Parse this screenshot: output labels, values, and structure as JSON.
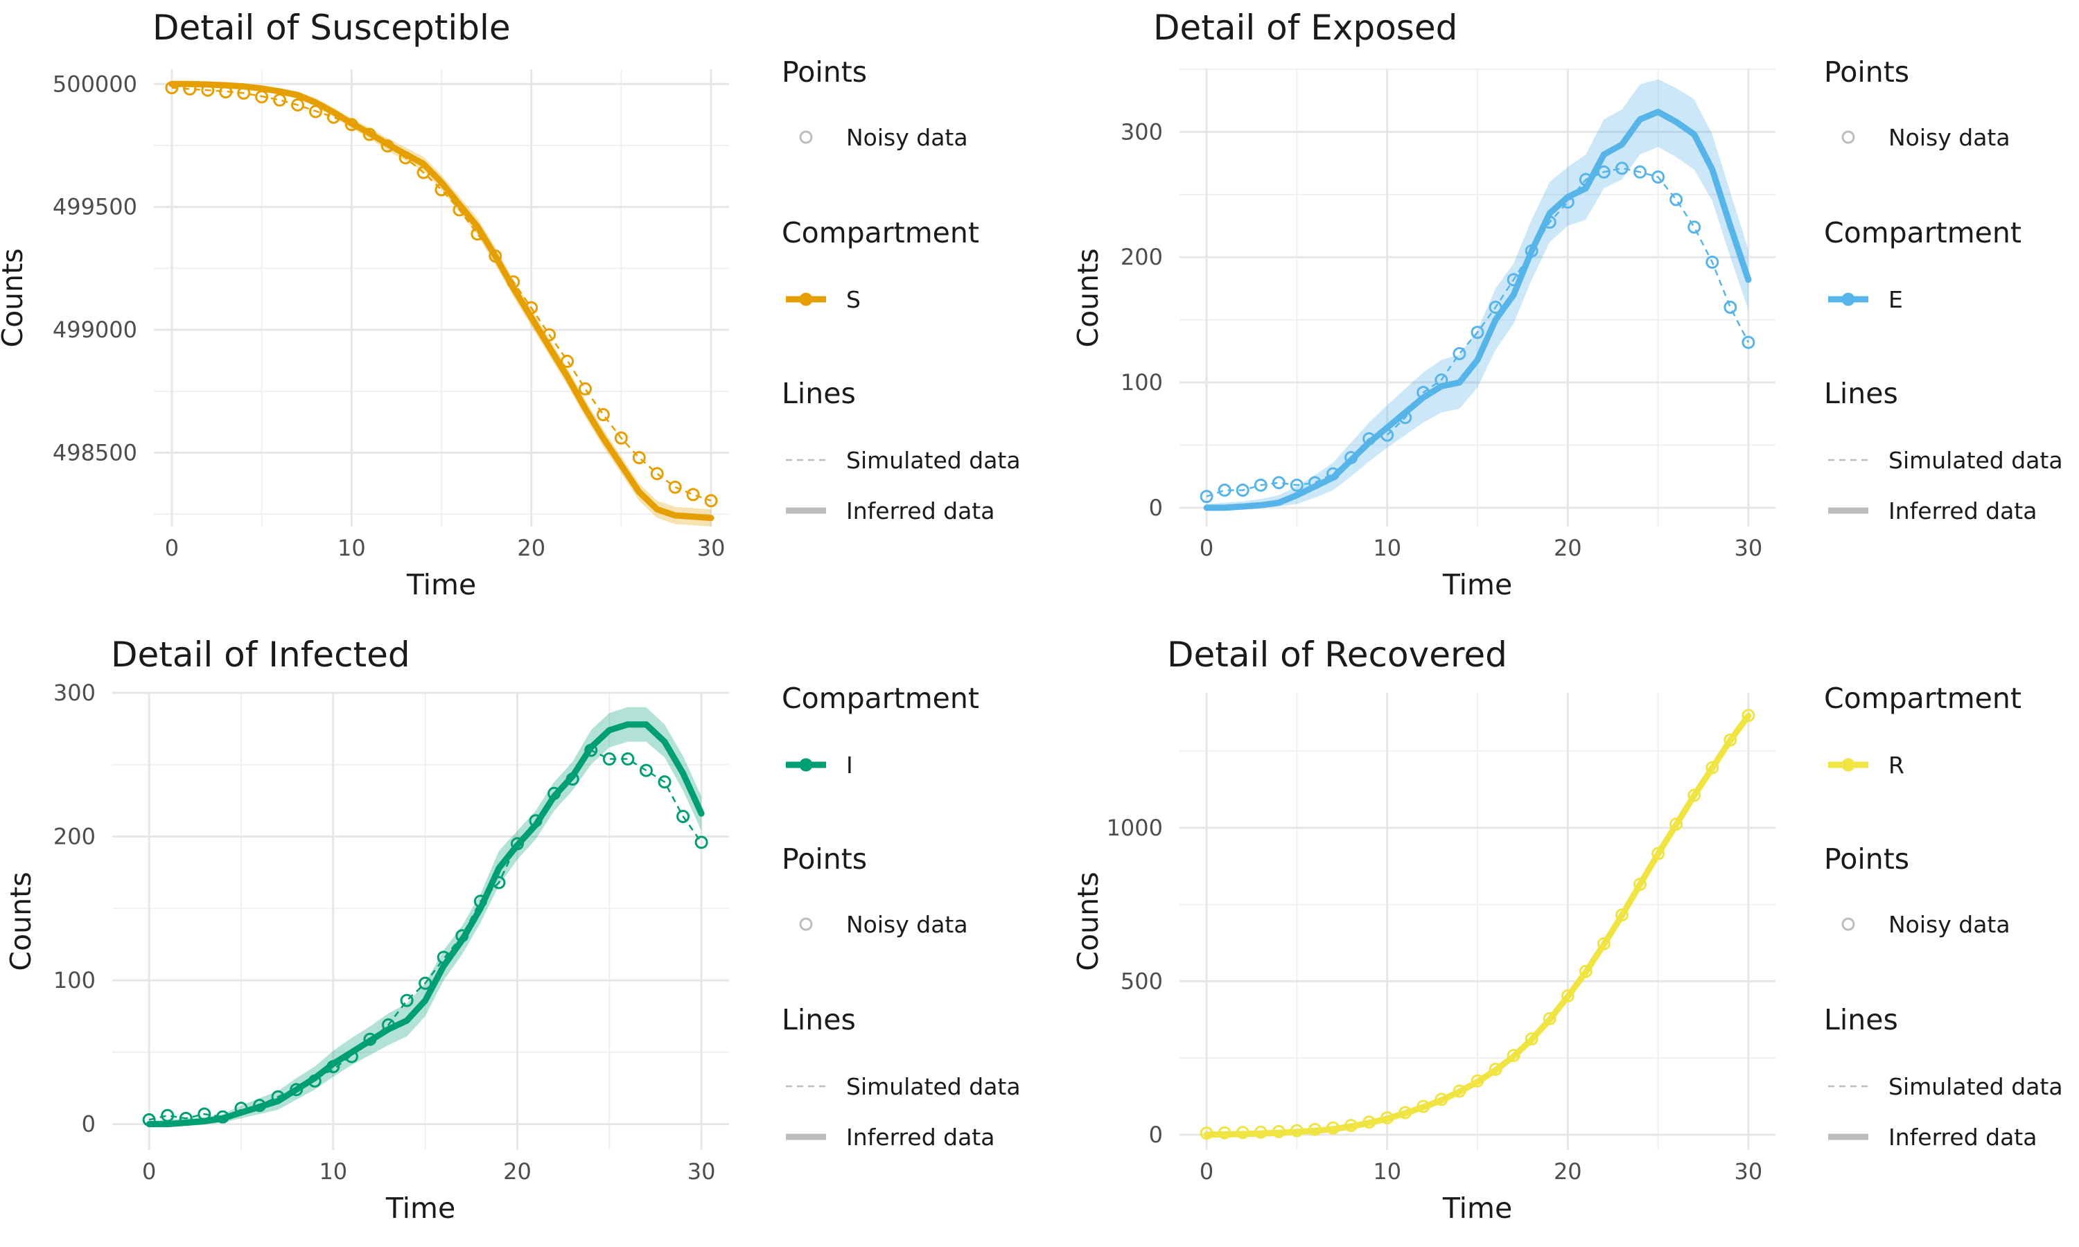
{
  "legend_text": {
    "points_title": "Points",
    "noisy_label": "Noisy data",
    "compartment_title": "Compartment",
    "lines_title": "Lines",
    "simulated_label": "Simulated data",
    "inferred_label": "Inferred data",
    "noisy_color": "#bdbdbd",
    "line_color": "#bdbdbd"
  },
  "chart_data": [
    {
      "type": "line",
      "title": "Detail of Susceptible",
      "xlabel": "Time",
      "ylabel": "Counts",
      "xlim": [
        -1,
        31
      ],
      "ylim": [
        498200,
        500060
      ],
      "xticks": [
        0,
        10,
        20,
        30
      ],
      "yticks": [
        498500,
        499000,
        499500,
        500000
      ],
      "grid": true,
      "color": "#E69F00",
      "compartment": "S",
      "legend_order": [
        "points",
        "compartment",
        "lines"
      ],
      "x": [
        0,
        1,
        2,
        3,
        4,
        5,
        6,
        7,
        8,
        9,
        10,
        11,
        12,
        13,
        14,
        15,
        16,
        17,
        18,
        19,
        20,
        21,
        22,
        23,
        24,
        25,
        26,
        27,
        28,
        29,
        30
      ],
      "series": [
        {
          "name": "Inferred data",
          "values": [
            500000,
            500000,
            499998,
            499995,
            499990,
            499982,
            499970,
            499955,
            499925,
            499885,
            499840,
            499800,
            499755,
            499715,
            499675,
            499600,
            499510,
            499420,
            499300,
            499170,
            499050,
            498930,
            498810,
            498680,
            498560,
            498450,
            498340,
            498270,
            498245,
            498240,
            498235
          ]
        },
        {
          "name": "Simulated data",
          "values": [
            499985,
            499980,
            499975,
            499970,
            499963,
            499950,
            499935,
            499915,
            499890,
            499865,
            499835,
            499795,
            499750,
            499700,
            499640,
            499570,
            499490,
            499390,
            499300,
            499195,
            499090,
            498980,
            498875,
            498760,
            498655,
            498560,
            498480,
            498415,
            498360,
            498330,
            498305
          ]
        },
        {
          "name": "Noisy data",
          "values": [
            499985,
            499980,
            499975,
            499968,
            499963,
            499948,
            499935,
            499915,
            499888,
            499865,
            499835,
            499795,
            499748,
            499700,
            499640,
            499570,
            499488,
            499390,
            499300,
            499195,
            499090,
            498980,
            498872,
            498760,
            498655,
            498560,
            498480,
            498415,
            498360,
            498330,
            498305
          ]
        }
      ],
      "band_lower": [
        499998,
        499996,
        499993,
        499988,
        499982,
        499972,
        499958,
        499940,
        499908,
        499866,
        499820,
        499778,
        499730,
        499688,
        499646,
        499570,
        499478,
        499385,
        499265,
        499135,
        499015,
        498895,
        498775,
        498645,
        498525,
        498415,
        498305,
        498235,
        498210,
        498205,
        498200
      ],
      "band_upper": [
        500002,
        500004,
        500003,
        500002,
        499998,
        499992,
        499982,
        499970,
        499942,
        499904,
        499860,
        499822,
        499780,
        499742,
        499704,
        499630,
        499542,
        499455,
        499335,
        499205,
        499085,
        498965,
        498845,
        498715,
        498595,
        498485,
        498375,
        498305,
        498280,
        498275,
        498270
      ]
    },
    {
      "type": "line",
      "title": "Detail of Exposed",
      "xlabel": "Time",
      "ylabel": "Counts",
      "xlim": [
        -1.5,
        31.5
      ],
      "ylim": [
        -15,
        350
      ],
      "xticks": [
        0,
        10,
        20,
        30
      ],
      "yticks": [
        0,
        100,
        200,
        300
      ],
      "grid": true,
      "color": "#56B4E9",
      "compartment": "E",
      "legend_order": [
        "points",
        "compartment",
        "lines"
      ],
      "x": [
        0,
        1,
        2,
        3,
        4,
        5,
        6,
        7,
        8,
        9,
        10,
        11,
        12,
        13,
        14,
        15,
        16,
        17,
        18,
        19,
        20,
        21,
        22,
        23,
        24,
        25,
        26,
        27,
        28,
        29,
        30
      ],
      "series": [
        {
          "name": "Inferred data",
          "values": [
            0,
            0,
            1,
            2,
            4,
            10,
            17,
            24,
            38,
            52,
            64,
            76,
            88,
            97,
            100,
            118,
            150,
            170,
            205,
            235,
            248,
            255,
            282,
            290,
            310,
            316,
            308,
            298,
            270,
            225,
            182
          ]
        },
        {
          "name": "Simulated data",
          "values": [
            9,
            14,
            14,
            18,
            20,
            18,
            20,
            27,
            40,
            55,
            58,
            72,
            92,
            102,
            123,
            140,
            160,
            182,
            205,
            228,
            244,
            262,
            268,
            271,
            268,
            264,
            246,
            224,
            196,
            160,
            132
          ]
        },
        {
          "name": "Noisy data",
          "values": [
            9,
            14,
            14,
            18,
            20,
            18,
            20,
            27,
            40,
            55,
            58,
            72,
            92,
            102,
            123,
            140,
            160,
            182,
            205,
            228,
            244,
            262,
            268,
            271,
            268,
            264,
            246,
            224,
            196,
            160,
            132
          ]
        }
      ],
      "band_lower": [
        0,
        0,
        0,
        0,
        1,
        3,
        8,
        14,
        25,
        37,
        48,
        58,
        68,
        76,
        79,
        96,
        126,
        147,
        182,
        212,
        225,
        230,
        255,
        262,
        282,
        288,
        280,
        270,
        245,
        200,
        158
      ],
      "band_upper": [
        3,
        4,
        5,
        7,
        10,
        17,
        26,
        36,
        52,
        68,
        82,
        95,
        108,
        118,
        122,
        142,
        175,
        195,
        230,
        260,
        272,
        282,
        310,
        318,
        338,
        342,
        335,
        326,
        298,
        252,
        206
      ]
    },
    {
      "type": "line",
      "title": "Detail of Infected",
      "xlabel": "Time",
      "ylabel": "Counts",
      "xlim": [
        -2,
        31.5
      ],
      "ylim": [
        -18,
        300
      ],
      "xticks": [
        0,
        10,
        20,
        30
      ],
      "yticks": [
        0,
        100,
        200,
        300
      ],
      "grid": true,
      "color": "#009E73",
      "compartment": "I",
      "legend_order": [
        "compartment",
        "points",
        "lines"
      ],
      "x": [
        0,
        1,
        2,
        3,
        4,
        5,
        6,
        7,
        8,
        9,
        10,
        11,
        12,
        13,
        14,
        15,
        16,
        17,
        18,
        19,
        20,
        21,
        22,
        23,
        24,
        25,
        26,
        27,
        28,
        29,
        30
      ],
      "series": [
        {
          "name": "Inferred data",
          "values": [
            0,
            0,
            1,
            2,
            4,
            8,
            12,
            16,
            24,
            32,
            42,
            50,
            58,
            66,
            72,
            86,
            110,
            128,
            150,
            178,
            194,
            208,
            228,
            242,
            262,
            274,
            278,
            278,
            266,
            244,
            216
          ]
        },
        {
          "name": "Simulated data",
          "values": [
            3,
            6,
            4,
            7,
            5,
            10,
            13,
            19,
            25,
            32,
            38,
            48,
            58,
            69,
            86,
            98,
            115,
            131,
            155,
            168,
            195,
            211,
            230,
            240,
            260,
            254,
            254,
            246,
            238,
            214,
            196
          ]
        },
        {
          "name": "Noisy data",
          "values": [
            3,
            6,
            4,
            7,
            5,
            11,
            13,
            19,
            24,
            30,
            40,
            47,
            59,
            69,
            86,
            98,
            116,
            131,
            155,
            168,
            195,
            211,
            230,
            240,
            260,
            254,
            254,
            246,
            238,
            214,
            196
          ]
        }
      ],
      "band_lower": [
        0,
        0,
        0,
        0,
        1,
        4,
        7,
        10,
        17,
        24,
        33,
        41,
        48,
        55,
        61,
        75,
        100,
        118,
        140,
        166,
        184,
        198,
        218,
        232,
        250,
        262,
        266,
        266,
        255,
        232,
        204
      ],
      "band_upper": [
        2,
        3,
        4,
        5,
        7,
        13,
        18,
        23,
        32,
        40,
        51,
        60,
        68,
        77,
        84,
        98,
        121,
        138,
        160,
        190,
        204,
        218,
        238,
        252,
        274,
        286,
        290,
        290,
        278,
        256,
        228
      ]
    },
    {
      "type": "line",
      "title": "Detail of Recovered",
      "xlabel": "Time",
      "ylabel": "Counts",
      "xlim": [
        -1.5,
        31.5
      ],
      "ylim": [
        -50,
        1440
      ],
      "xticks": [
        0,
        10,
        20,
        30
      ],
      "yticks": [
        0,
        500,
        1000
      ],
      "grid": true,
      "color": "#F0E442",
      "compartment": "R",
      "legend_order": [
        "compartment",
        "points",
        "lines"
      ],
      "x": [
        0,
        1,
        2,
        3,
        4,
        5,
        6,
        7,
        8,
        9,
        10,
        11,
        12,
        13,
        14,
        15,
        16,
        17,
        18,
        19,
        20,
        21,
        22,
        23,
        24,
        25,
        26,
        27,
        28,
        29,
        30
      ],
      "series": [
        {
          "name": "Inferred data",
          "values": [
            0,
            1,
            2,
            4,
            6,
            9,
            13,
            18,
            27,
            38,
            52,
            70,
            90,
            112,
            140,
            172,
            210,
            255,
            310,
            375,
            450,
            530,
            620,
            715,
            815,
            915,
            1010,
            1105,
            1195,
            1285,
            1365
          ]
        },
        {
          "name": "Simulated data",
          "values": [
            5,
            6,
            7,
            8,
            10,
            13,
            17,
            22,
            30,
            41,
            55,
            72,
            92,
            115,
            142,
            175,
            213,
            258,
            312,
            378,
            452,
            532,
            622,
            716,
            816,
            916,
            1012,
            1106,
            1196,
            1286,
            1366
          ]
        },
        {
          "name": "Noisy data",
          "values": [
            5,
            6,
            7,
            8,
            10,
            13,
            17,
            22,
            30,
            41,
            55,
            72,
            92,
            115,
            142,
            175,
            213,
            258,
            312,
            378,
            452,
            532,
            622,
            716,
            816,
            916,
            1012,
            1106,
            1196,
            1286,
            1366
          ]
        }
      ]
    }
  ]
}
